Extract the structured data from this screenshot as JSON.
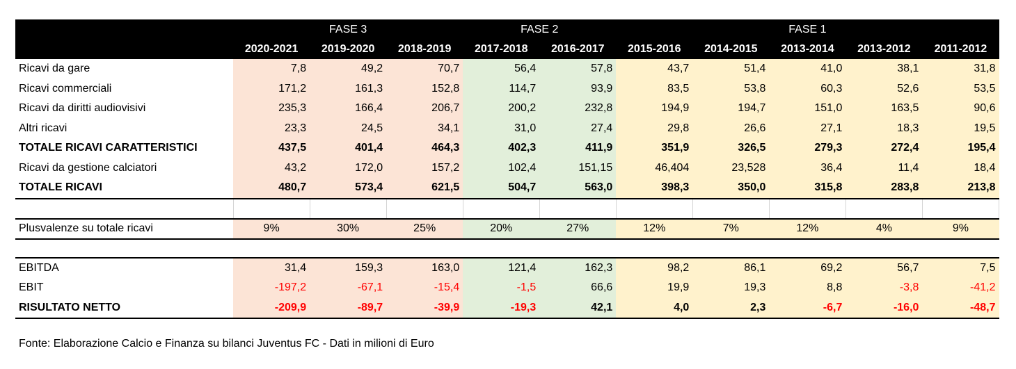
{
  "phases": [
    "FASE 3",
    "FASE 2",
    "FASE 1"
  ],
  "years": [
    "2020-2021",
    "2019-2020",
    "2018-2019",
    "2017-2018",
    "2016-2017",
    "2015-2016",
    "2014-2015",
    "2013-2014",
    "2013-2012",
    "2011-2012"
  ],
  "phase_colors": {
    "fase3": "#fce4d6",
    "fase2": "#e2efda",
    "fase1": "#fff2cc"
  },
  "rows": [
    {
      "label": "Ricavi da gare",
      "values": [
        "7,8",
        "49,2",
        "70,7",
        "56,4",
        "57,8",
        "43,7",
        "51,4",
        "41,0",
        "38,1",
        "31,8"
      ]
    },
    {
      "label": "Ricavi commerciali",
      "values": [
        "171,2",
        "161,3",
        "152,8",
        "114,7",
        "93,9",
        "83,5",
        "53,8",
        "60,3",
        "52,6",
        "53,5"
      ]
    },
    {
      "label": "Ricavi da diritti audiovisivi",
      "values": [
        "235,3",
        "166,4",
        "206,7",
        "200,2",
        "232,8",
        "194,9",
        "194,7",
        "151,0",
        "163,5",
        "90,6"
      ]
    },
    {
      "label": "Altri ricavi",
      "values": [
        "23,3",
        "24,5",
        "34,1",
        "31,0",
        "27,4",
        "29,8",
        "26,6",
        "27,1",
        "18,3",
        "19,5"
      ]
    },
    {
      "label": "TOTALE RICAVI CARATTERISTICI",
      "values": [
        "437,5",
        "401,4",
        "464,3",
        "402,3",
        "411,9",
        "351,9",
        "326,5",
        "279,3",
        "272,4",
        "195,4"
      ]
    },
    {
      "label": "Ricavi da gestione calciatori",
      "values": [
        "43,2",
        "172,0",
        "157,2",
        "102,4",
        "151,15",
        "46,404",
        "23,528",
        "36,4",
        "11,4",
        "18,4"
      ]
    },
    {
      "label": "TOTALE RICAVI",
      "values": [
        "480,7",
        "573,4",
        "621,5",
        "504,7",
        "563,0",
        "398,3",
        "350,0",
        "315,8",
        "283,8",
        "213,8"
      ]
    },
    {
      "label": "Plusvalenze su totale ricavi",
      "values": [
        "9%",
        "30%",
        "25%",
        "20%",
        "27%",
        "12%",
        "7%",
        "12%",
        "4%",
        "9%"
      ]
    },
    {
      "label": "EBITDA",
      "values": [
        "31,4",
        "159,3",
        "163,0",
        "121,4",
        "162,3",
        "98,2",
        "86,1",
        "69,2",
        "56,7",
        "7,5"
      ]
    },
    {
      "label": "EBIT",
      "values": [
        "-197,2",
        "-67,1",
        "-15,4",
        "-1,5",
        "66,6",
        "19,9",
        "19,3",
        "8,8",
        "-3,8",
        "-41,2"
      ]
    },
    {
      "label": "RISULTATO NETTO",
      "values": [
        "-209,9",
        "-89,7",
        "-39,9",
        "-19,3",
        "42,1",
        "4,0",
        "2,3",
        "-6,7",
        "-16,0",
        "-48,7"
      ]
    }
  ],
  "source": "Fonte: Elaborazione Calcio e Finanza su bilanci Juventus FC - Dati in milioni di Euro"
}
